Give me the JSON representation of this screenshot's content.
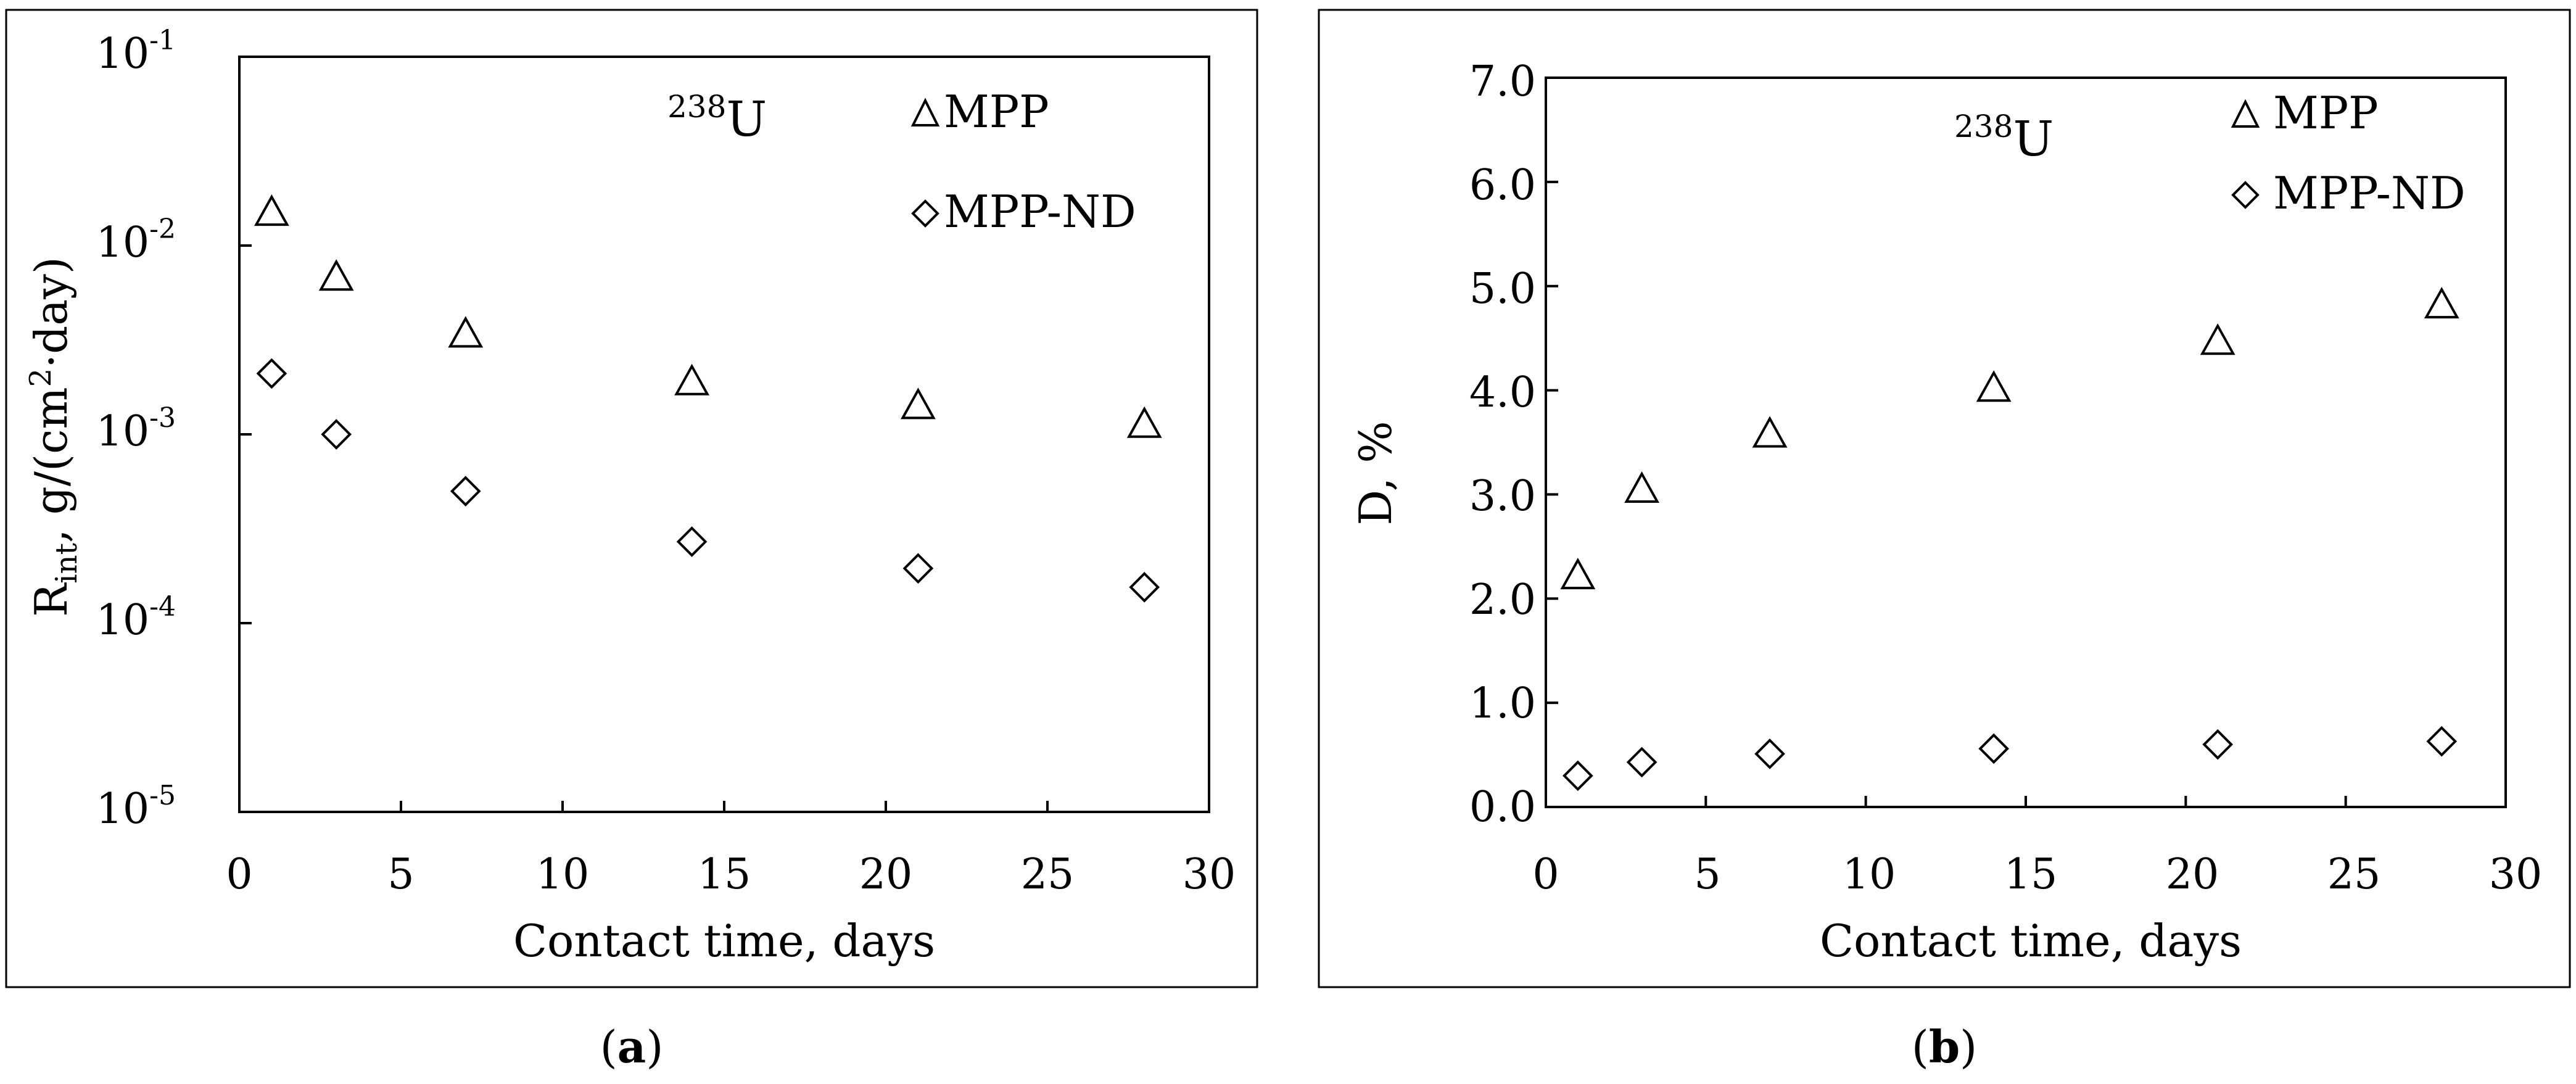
{
  "chart_data": [
    {
      "type": "scatter",
      "panel": "a",
      "caption": {
        "open": "(",
        "letter": "a",
        "close": ")"
      },
      "xlabel": "Contact time, days",
      "ylabel": {
        "main": "R",
        "sub": "int",
        "rest": ", g/(cm",
        "sup": "2",
        "end": "·day)"
      },
      "annotation": {
        "sup": "238",
        "base": "U"
      },
      "xlim": [
        0,
        30
      ],
      "ylim": [
        1e-05,
        0.1
      ],
      "yscale": "log",
      "xticks": [
        "0",
        "5",
        "10",
        "15",
        "20",
        "25",
        "30"
      ],
      "yticks": [
        {
          "base": "10",
          "exp": "-1",
          "value": 0.1
        },
        {
          "base": "10",
          "exp": "-2",
          "value": 0.01
        },
        {
          "base": "10",
          "exp": "-3",
          "value": 0.001
        },
        {
          "base": "10",
          "exp": "-4",
          "value": 0.0001
        },
        {
          "base": "10",
          "exp": "-5",
          "value": 1e-05
        }
      ],
      "grid": false,
      "legend_position": "top-right",
      "x": [
        1,
        3,
        7,
        14,
        21,
        28
      ],
      "series": [
        {
          "name": "MPP",
          "marker": "triangle",
          "values": [
            0.015,
            0.0068,
            0.0034,
            0.0019,
            0.00142,
            0.00113
          ]
        },
        {
          "name": "MPP-ND",
          "marker": "diamond",
          "values": [
            0.0021,
            0.001,
            0.0005,
            0.00027,
            0.000195,
            0.000155
          ]
        }
      ]
    },
    {
      "type": "scatter",
      "panel": "b",
      "caption": {
        "open": "(",
        "letter": "b",
        "close": ")"
      },
      "xlabel": "Contact time, days",
      "ylabel": "D, %",
      "annotation": {
        "sup": "238",
        "base": "U"
      },
      "xlim": [
        0,
        30
      ],
      "ylim": [
        0,
        7
      ],
      "yscale": "linear",
      "xticks": [
        "0",
        "5",
        "10",
        "15",
        "20",
        "25",
        "30"
      ],
      "yticks": [
        "0.0",
        "1.0",
        "2.0",
        "3.0",
        "4.0",
        "5.0",
        "6.0",
        "7.0"
      ],
      "grid": false,
      "legend_position": "top-right",
      "x": [
        1,
        3,
        7,
        14,
        21,
        28
      ],
      "series": [
        {
          "name": "MPP",
          "marker": "triangle",
          "values": [
            2.22,
            3.05,
            3.58,
            4.02,
            4.47,
            4.82
          ]
        },
        {
          "name": "MPP-ND",
          "marker": "diamond",
          "values": [
            0.3,
            0.43,
            0.51,
            0.56,
            0.6,
            0.63
          ]
        }
      ]
    }
  ]
}
